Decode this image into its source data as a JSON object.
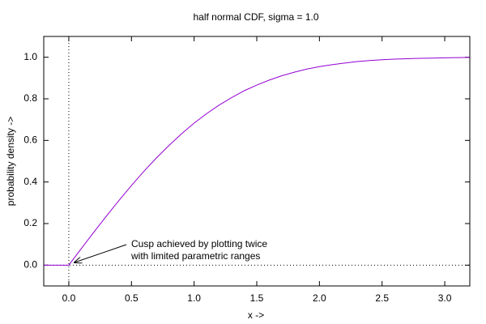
{
  "chart_data": {
    "type": "line",
    "title": "half normal CDF, sigma = 1.0",
    "x_label": "x ->",
    "y_label": "probability density ->",
    "x": [
      -0.2,
      -0.1,
      0,
      0.1,
      0.2,
      0.3,
      0.4,
      0.5,
      0.6,
      0.7,
      0.8,
      0.9,
      1.0,
      1.1,
      1.2,
      1.3,
      1.4,
      1.5,
      1.6,
      1.7,
      1.8,
      1.9,
      2.0,
      2.1,
      2.2,
      2.3,
      2.4,
      2.5,
      2.6,
      2.7,
      2.8,
      2.9,
      3.0,
      3.1,
      3.2
    ],
    "series": [
      {
        "color": "#9400d3",
        "values": [
          0,
          0,
          0,
          0.08,
          0.159,
          0.236,
          0.311,
          0.383,
          0.452,
          0.516,
          0.576,
          0.632,
          0.683,
          0.729,
          0.77,
          0.806,
          0.839,
          0.866,
          0.89,
          0.911,
          0.928,
          0.943,
          0.955,
          0.964,
          0.972,
          0.979,
          0.984,
          0.988,
          0.991,
          0.993,
          0.995,
          0.996,
          0.997,
          0.998,
          0.999
        ]
      }
    ],
    "xlim": [
      -0.2,
      3.2
    ],
    "xticks": [
      {
        "value": 0,
        "label": "0.0"
      },
      0.5,
      {
        "value": 1,
        "label": "1.0"
      },
      1.5,
      {
        "value": 2,
        "label": "2.0"
      },
      2.5,
      {
        "value": 3,
        "label": "3.0"
      }
    ],
    "ylim": [
      -0.1,
      1.1
    ],
    "yticks": [
      {
        "value": 0,
        "label": "0.0"
      },
      0.2,
      0.4,
      0.6,
      0.8,
      {
        "value": 1,
        "label": "1.0"
      }
    ],
    "zeroaxis": true,
    "annotations": [
      "Cusp achieved by plotting twice",
      "with limited parametric ranges"
    ]
  }
}
